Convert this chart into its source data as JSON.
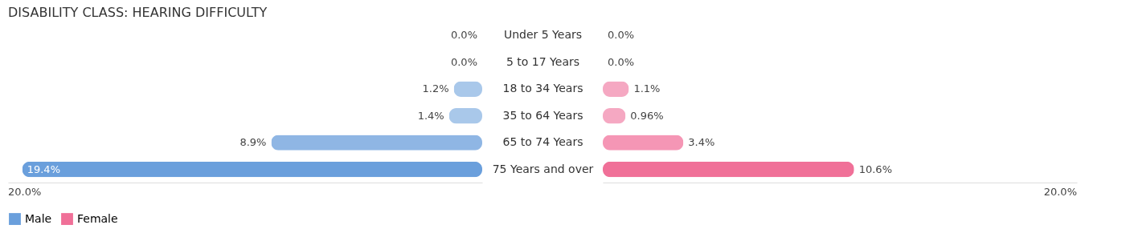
{
  "chart_data": [
    {
      "type": "bar",
      "orientation": "horizontal",
      "title": "DISABILITY CLASS: HEARING DIFFICULTY",
      "categories": [
        "Under 5 Years",
        "5 to 17 Years",
        "18 to 34 Years",
        "35 to 64 Years",
        "65 to 74 Years",
        "75 Years and over"
      ],
      "series": [
        {
          "name": "Male",
          "color": "#6a9fdc",
          "values": [
            0.0,
            0.0,
            1.2,
            1.4,
            8.9,
            19.4
          ],
          "colors": [
            "#a9c8ea",
            "#a9c8ea",
            "#a9c8ea",
            "#a9c8ea",
            "#8fb6e4",
            "#6a9fdc"
          ],
          "value_labels": [
            "0.0%",
            "0.0%",
            "1.2%",
            "1.4%",
            "8.9%",
            "19.4%"
          ]
        }
      ],
      "xlim": [
        20,
        0
      ],
      "annotations": [
        "20.0%"
      ],
      "legend": "bottom"
    },
    {
      "type": "bar",
      "orientation": "horizontal",
      "series": [
        {
          "name": "Female",
          "color": "#f07098",
          "values": [
            0.0,
            0.0,
            1.1,
            0.96,
            3.4,
            10.6
          ],
          "colors": [
            "#f5a8c2",
            "#f5a8c2",
            "#f5a8c2",
            "#f5a8c2",
            "#f596b5",
            "#f07098"
          ],
          "value_labels": [
            "0.0%",
            "0.0%",
            "1.1%",
            "0.96%",
            "3.4%",
            "10.6%"
          ]
        }
      ],
      "xlim": [
        0,
        20
      ],
      "annotations": [
        "20.0%"
      ],
      "legend": "bottom"
    }
  ]
}
